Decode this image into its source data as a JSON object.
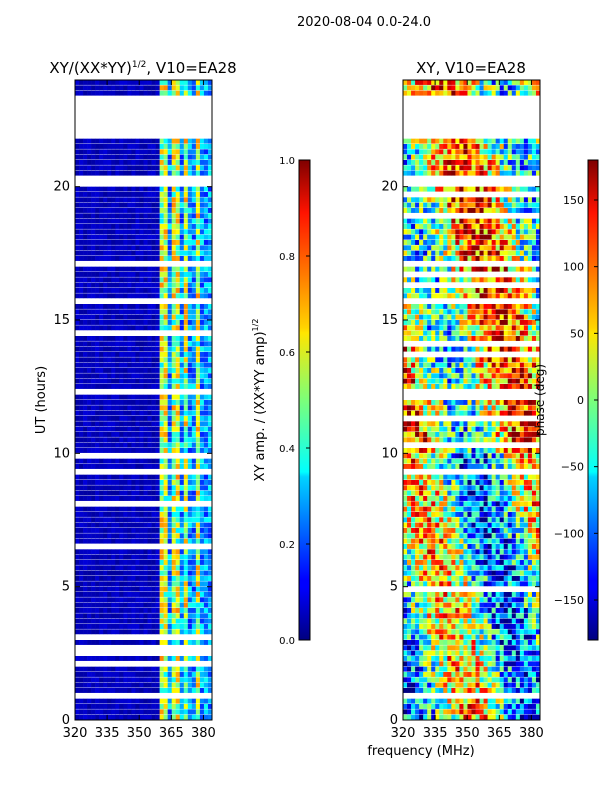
{
  "suptitle": "2020-08-04 0.0-24.0",
  "shared_xlabel": "frequency (MHz)",
  "chart_data": [
    {
      "type": "heatmap",
      "title_main": "XY/(XX*YY)",
      "title_sup": "1/2",
      "title_rest": ", V10=EA28",
      "xlabel": "",
      "ylabel": "UT (hours)",
      "xlim": [
        320,
        384
      ],
      "ylim": [
        0,
        24
      ],
      "xticks": [
        "320",
        "335",
        "350",
        "365",
        "380"
      ],
      "xtick_values": [
        320,
        335,
        350,
        365,
        380
      ],
      "yticks": [
        "0",
        "5",
        "10",
        "15",
        "20"
      ],
      "ytick_values": [
        0,
        5,
        10,
        15,
        20
      ],
      "colorbar": {
        "label_main": "XY amp. / (XX*YY amp)",
        "label_sup": "1/2",
        "range": [
          0.0,
          1.0
        ],
        "ticks": [
          "0.0",
          "0.2",
          "0.4",
          "0.6",
          "0.8",
          "1.0"
        ],
        "tick_values": [
          0.0,
          0.2,
          0.4,
          0.6,
          0.8,
          1.0
        ]
      },
      "flagged_ut_ranges": [
        [
          0.75,
          0.95
        ],
        [
          22.0,
          23.4
        ],
        [
          20.0,
          20.5
        ],
        [
          18.95,
          19.05
        ],
        [
          15.7,
          15.8
        ],
        [
          9.25,
          9.35
        ]
      ],
      "hot_freq_bands_mhz": [
        [
          360,
          364
        ],
        [
          366,
          368
        ],
        [
          370,
          372
        ],
        [
          376,
          378
        ]
      ]
    },
    {
      "type": "heatmap",
      "title": "XY, V10=EA28",
      "xlabel": "frequency (MHz)",
      "ylabel": "",
      "xlim": [
        320,
        384
      ],
      "ylim": [
        0,
        24
      ],
      "xticks": [
        "320",
        "335",
        "350",
        "365",
        "380"
      ],
      "xtick_values": [
        320,
        335,
        350,
        365,
        380
      ],
      "yticks": [
        "0",
        "5",
        "10",
        "15",
        "20"
      ],
      "ytick_values": [
        0,
        5,
        10,
        15,
        20
      ],
      "colorbar": {
        "label": "phase (deg)",
        "range": [
          -180,
          180
        ],
        "ticks": [
          "−150",
          "−100",
          "−50",
          "0",
          "50",
          "100",
          "150"
        ],
        "tick_values": [
          -150,
          -100,
          -50,
          0,
          50,
          100,
          150
        ]
      },
      "flagged_ut_ranges": [
        [
          0.75,
          0.95
        ],
        [
          22.0,
          23.4
        ],
        [
          20.0,
          20.5
        ],
        [
          18.95,
          19.05
        ],
        [
          15.7,
          15.8
        ],
        [
          9.25,
          9.35
        ]
      ]
    }
  ]
}
